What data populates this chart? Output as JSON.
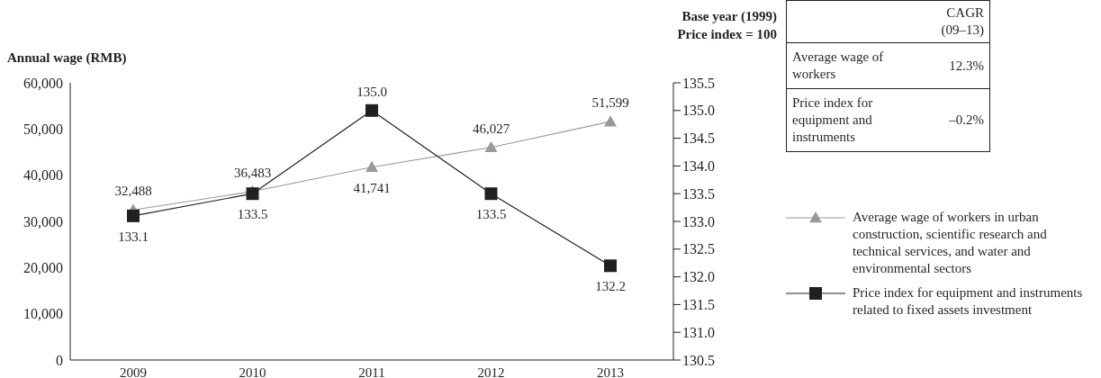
{
  "chart_data": {
    "type": "line",
    "ylabel": "Annual wage (RMB)",
    "y2label": "Base year (1999)\nPrice index = 100",
    "categories": [
      "2009",
      "2010",
      "2011",
      "2012",
      "2013"
    ],
    "series": [
      {
        "name": "Average wage of workers in urban construction, scientific research and technical services, and water and environmental sectors",
        "color": "#999999",
        "marker": "triangle",
        "values": [
          32488,
          36483,
          41741,
          46027,
          51599
        ]
      },
      {
        "name": "Price index for equipment and instruments related to fixed assets investment",
        "color": "#231f20",
        "marker": "square",
        "axis": "y2",
        "values": [
          133.1,
          133.5,
          135.0,
          133.5,
          132.2
        ]
      }
    ],
    "ylim": [
      0,
      60000
    ],
    "yticks": [
      {
        "value": 0,
        "label": "0"
      },
      {
        "value": 10000,
        "label": "10,000"
      },
      {
        "value": 20000,
        "label": "20,000"
      },
      {
        "value": 30000,
        "label": "30,000"
      },
      {
        "value": 40000,
        "label": "40,000"
      },
      {
        "value": 50000,
        "label": "50,000"
      },
      {
        "value": 60000,
        "label": "60,000"
      }
    ],
    "y2lim": [
      130.5,
      135.5
    ],
    "y2ticks": [
      {
        "value": 130.5,
        "label": "130.5"
      },
      {
        "value": 131,
        "label": "131.0"
      },
      {
        "value": 131.5,
        "label": "131.5"
      },
      {
        "value": 132,
        "label": "132.0"
      },
      {
        "value": 132.5,
        "label": "132.5"
      },
      {
        "value": 133,
        "label": "133.0"
      },
      {
        "value": 133.5,
        "label": "133.5"
      },
      {
        "value": 134,
        "label": "134.0"
      },
      {
        "value": 134.5,
        "label": "134.5"
      },
      {
        "value": 135,
        "label": "135.0"
      },
      {
        "value": 135.5,
        "label": "135.5"
      }
    ],
    "value_labels": [
      [
        "32,488",
        "36,483",
        "41,741",
        "46,027",
        "51,599"
      ],
      [
        "133.1",
        "133.5",
        "135.0",
        "133.5",
        "132.2"
      ]
    ],
    "grid": false,
    "legend": "right",
    "annotations": [
      "CAGR\n(09–13)",
      "Average wage of workers",
      "12.3%",
      "Price index for equipment and instruments",
      "–0.2%"
    ]
  }
}
